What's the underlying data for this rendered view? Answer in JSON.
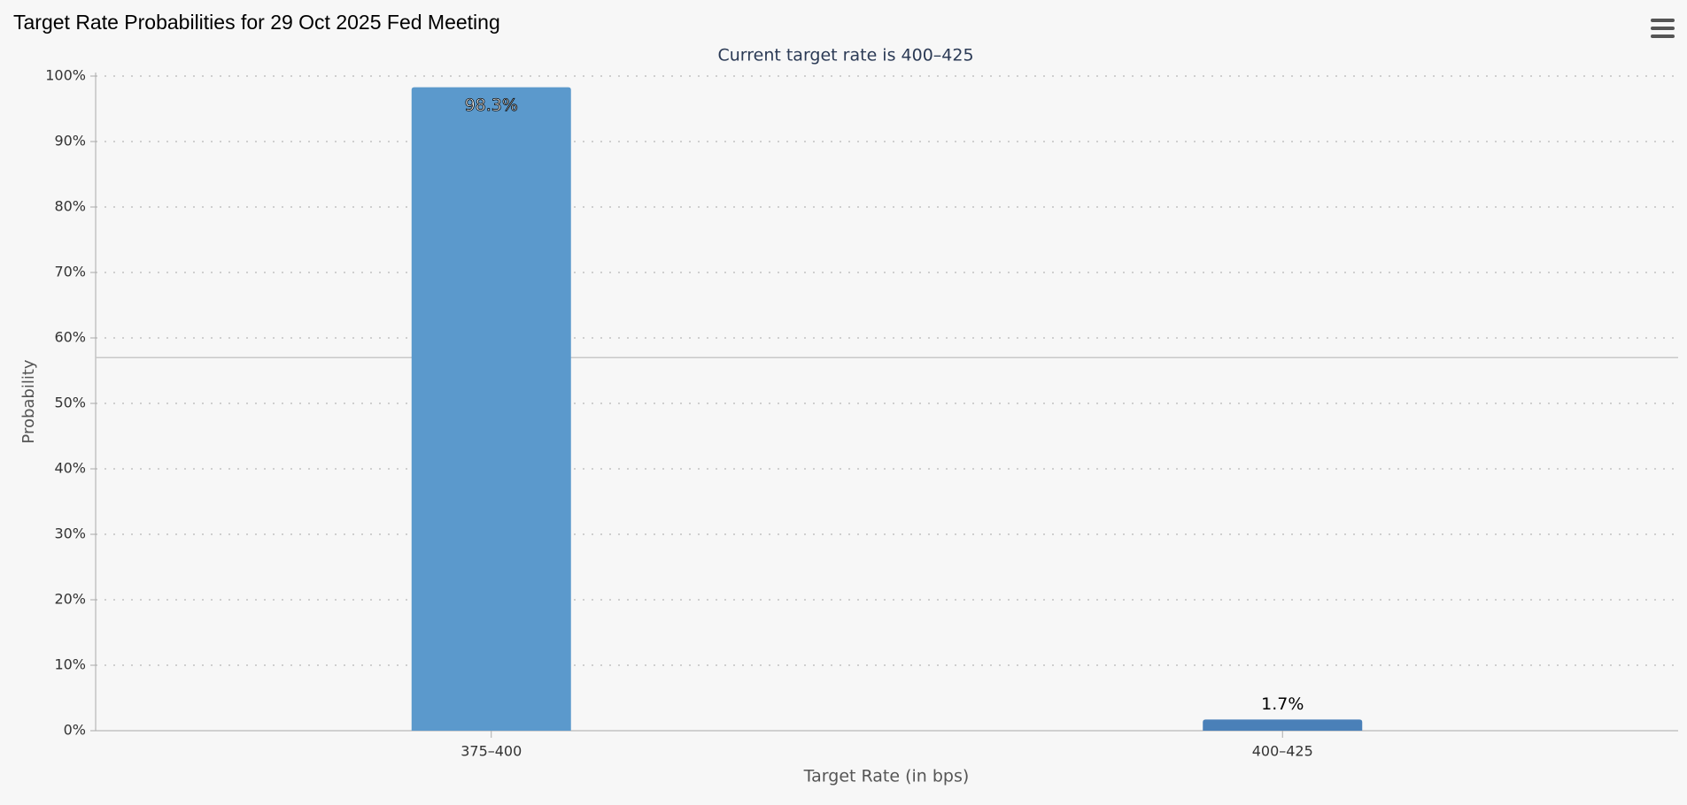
{
  "chart_data": {
    "type": "bar",
    "title": "Target Rate Probabilities for 29 Oct 2025 Fed Meeting",
    "subtitle": "Current target rate is 400–425",
    "y_label": "Probability",
    "x_label": "Target Rate (in bps)",
    "categories": [
      "375–400",
      "400–425"
    ],
    "values": [
      98.3,
      1.7
    ],
    "value_labels": [
      "98.3%",
      "1.7%"
    ],
    "colors": [
      "#5b99cc",
      "#4a80b8"
    ],
    "ylim": [
      0,
      100
    ],
    "yticks": [
      {
        "value": 0,
        "label": "0%"
      },
      {
        "value": 10,
        "label": "10%"
      },
      {
        "value": 20,
        "label": "20%"
      },
      {
        "value": 30,
        "label": "30%"
      },
      {
        "value": 40,
        "label": "40%"
      },
      {
        "value": 50,
        "label": "50%"
      },
      {
        "value": 60,
        "label": "60%"
      },
      {
        "value": 70,
        "label": "70%"
      },
      {
        "value": 80,
        "label": "80%"
      },
      {
        "value": 90,
        "label": "90%"
      },
      {
        "value": 100,
        "label": "100%"
      }
    ],
    "reference_line": 57,
    "grid": true
  }
}
